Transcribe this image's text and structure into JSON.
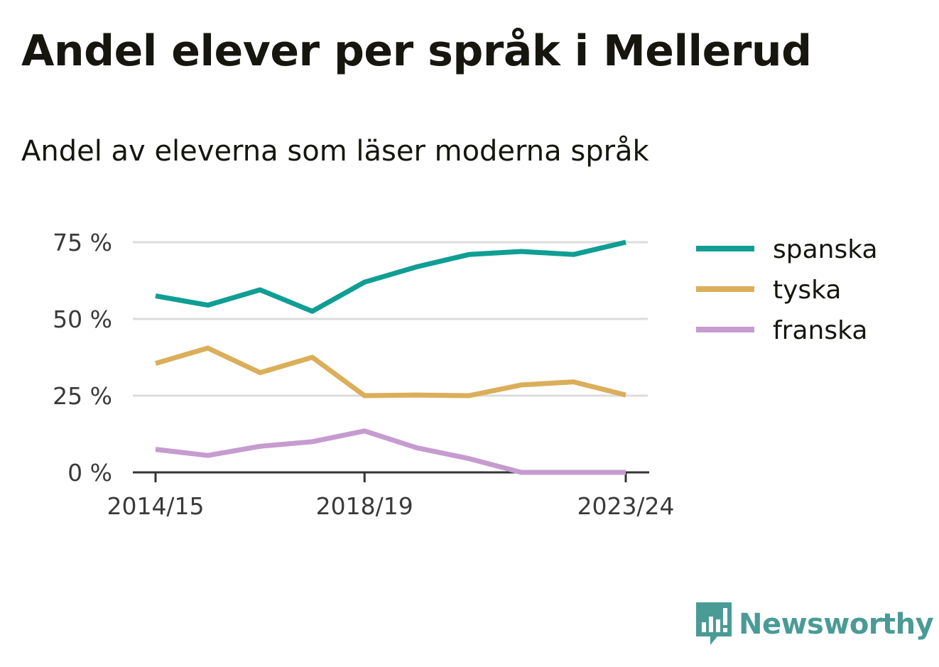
{
  "title": "Andel elever per språk i Mellerud",
  "subtitle": "Andel av eleverna som läser moderna språk",
  "brand": {
    "name": "Newsworthy",
    "icon": "newsworthy-logo-icon",
    "color": "#4a9b96"
  },
  "chart_data": {
    "type": "line",
    "title": "Andel elever per språk i Mellerud",
    "subtitle": "Andel av eleverna som läser moderna språk",
    "x": [
      "2014/15",
      "2015/16",
      "2016/17",
      "2017/18",
      "2018/19",
      "2019/20",
      "2020/21",
      "2021/22",
      "2022/23",
      "2023/24"
    ],
    "x_tick_labels": [
      "2014/15",
      "2018/19",
      "2023/24"
    ],
    "y_ticks": [
      0,
      25,
      50,
      75
    ],
    "y_tick_labels": [
      "0 %",
      "25 %",
      "50 %",
      "75 %"
    ],
    "ylim": [
      0,
      75
    ],
    "grid": true,
    "legend_position": "right",
    "series": [
      {
        "name": "spanska",
        "color": "#0f9e93",
        "values": [
          57.5,
          54.5,
          59.5,
          52.5,
          62,
          67,
          71,
          72,
          71,
          75
        ]
      },
      {
        "name": "tyska",
        "color": "#dbae5a",
        "values": [
          35.5,
          40.5,
          32.5,
          37.5,
          25,
          25.2,
          25,
          28.5,
          29.5,
          25.2
        ]
      },
      {
        "name": "franska",
        "color": "#c69bcf",
        "values": [
          7.5,
          5.5,
          8.5,
          10,
          13.5,
          8,
          4.5,
          0,
          0,
          0
        ]
      }
    ]
  }
}
